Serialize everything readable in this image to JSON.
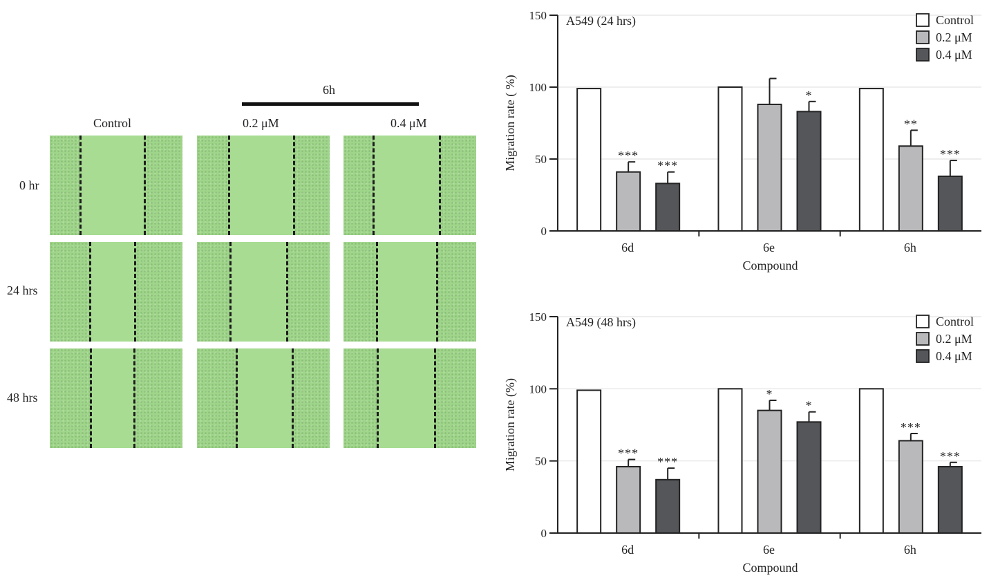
{
  "panel_a": {
    "compound_label": "6h",
    "columns": [
      "Control",
      "0.2 μM",
      "0.4 μM"
    ],
    "rows": [
      "0 hr",
      "24 hrs",
      "48 hrs"
    ]
  },
  "chart_data": [
    {
      "type": "bar",
      "title": "A549 (24 hrs)",
      "xlabel": "Compound",
      "ylabel": "Migration rate ( %)",
      "ylim": [
        0,
        150
      ],
      "yticks": [
        0,
        50,
        100,
        150
      ],
      "categories": [
        "6d",
        "6e",
        "6h"
      ],
      "grid": true,
      "legend_position": "top-right",
      "series": [
        {
          "name": "Control",
          "color": "#ffffff",
          "values": [
            99,
            100,
            99
          ],
          "errors": [
            0,
            0,
            0
          ],
          "significance": [
            "",
            "",
            ""
          ]
        },
        {
          "name": "0.2 μM",
          "color": "#b9b9bb",
          "values": [
            41,
            88,
            59
          ],
          "errors": [
            7,
            18,
            11
          ],
          "significance": [
            "***",
            "",
            "**"
          ]
        },
        {
          "name": "0.4 μM",
          "color": "#545659",
          "values": [
            33,
            83,
            38
          ],
          "errors": [
            8,
            7,
            11
          ],
          "significance": [
            "***",
            "*",
            "***"
          ]
        }
      ]
    },
    {
      "type": "bar",
      "title": "A549 (48 hrs)",
      "xlabel": "Compound",
      "ylabel": "Migration rate (%)",
      "ylim": [
        0,
        150
      ],
      "yticks": [
        0,
        50,
        100,
        150
      ],
      "categories": [
        "6d",
        "6e",
        "6h"
      ],
      "grid": true,
      "legend_position": "top-right",
      "series": [
        {
          "name": "Control",
          "color": "#ffffff",
          "values": [
            99,
            100,
            100
          ],
          "errors": [
            0,
            0,
            0
          ],
          "significance": [
            "",
            "",
            ""
          ]
        },
        {
          "name": "0.2 μM",
          "color": "#b9b9bb",
          "values": [
            46,
            85,
            64
          ],
          "errors": [
            5,
            7,
            5
          ],
          "significance": [
            "***",
            "*",
            "***"
          ]
        },
        {
          "name": "0.4 μM",
          "color": "#545659",
          "values": [
            37,
            77,
            46
          ],
          "errors": [
            8,
            7,
            3
          ],
          "significance": [
            "***",
            "*",
            "***"
          ]
        }
      ]
    }
  ]
}
